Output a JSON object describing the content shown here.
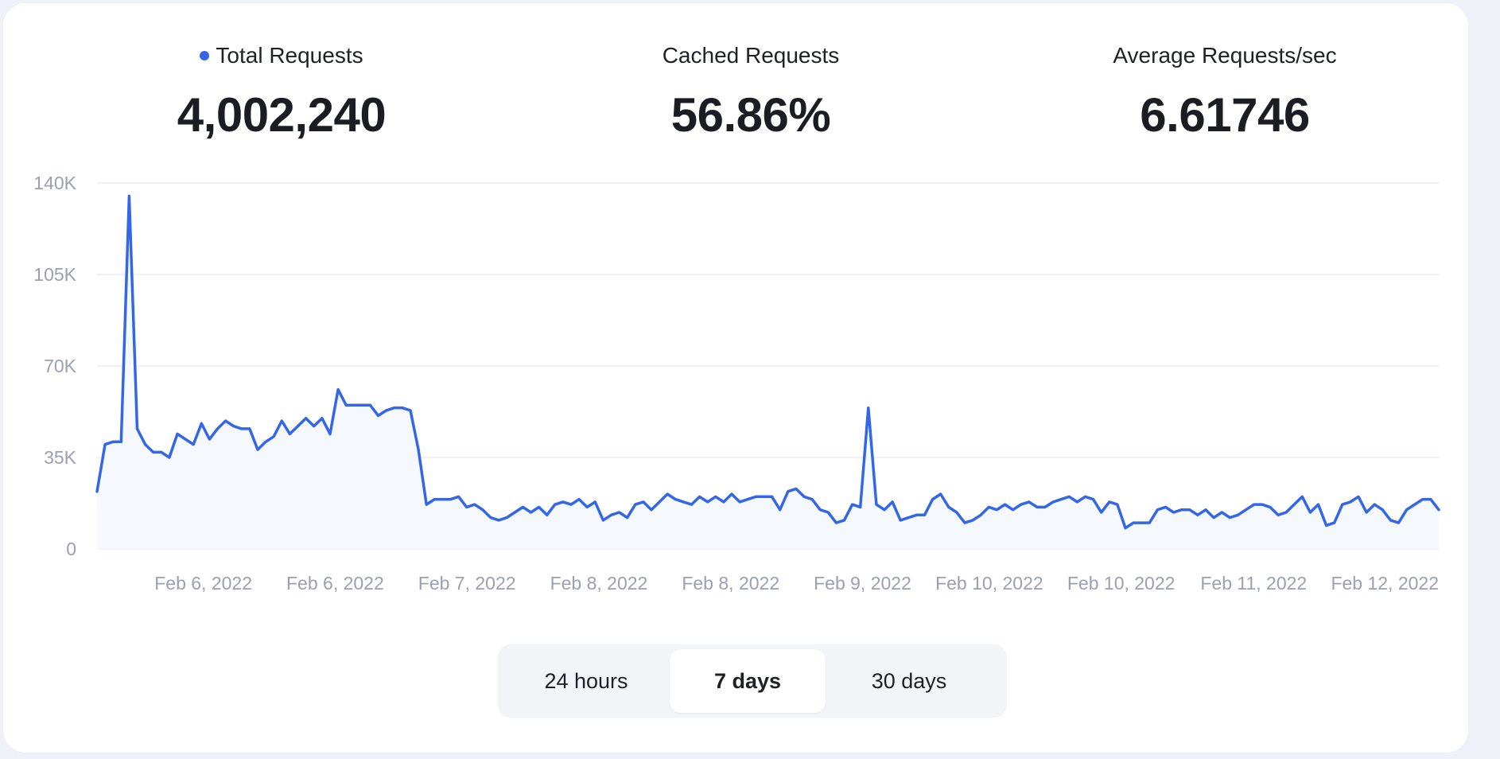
{
  "stats": [
    {
      "label": "Total Requests",
      "value": "4,002,240",
      "dot_color": "#3467e8"
    },
    {
      "label": "Cached Requests",
      "value": "56.86%"
    },
    {
      "label": "Average Requests/sec",
      "value": "6.61746"
    }
  ],
  "range_selector": {
    "options": [
      "24 hours",
      "7 days",
      "30 days"
    ],
    "selected": "7 days"
  },
  "colors": {
    "line": "#3467e8",
    "fill": "#f5f8fd",
    "grid": "#eef1f8"
  },
  "chart_data": {
    "type": "area",
    "title": "",
    "xlabel": "",
    "ylabel": "",
    "ylim": [
      0,
      140000
    ],
    "y_ticks": [
      0,
      35000,
      70000,
      105000,
      140000
    ],
    "y_tick_labels": [
      "0",
      "35K",
      "70K",
      "105K",
      "140K"
    ],
    "x_tick_labels": [
      "Feb 6, 2022",
      "Feb 6, 2022",
      "Feb 7, 2022",
      "Feb 8, 2022",
      "Feb 8, 2022",
      "Feb 9, 2022",
      "Feb 10, 2022",
      "Feb 10, 2022",
      "Feb 11, 2022",
      "Feb 12, 2022"
    ],
    "grid": true,
    "legend": "none",
    "series": [
      {
        "name": "Total Requests",
        "values": [
          22000,
          40000,
          41000,
          41000,
          135000,
          46000,
          40000,
          37000,
          37000,
          35000,
          44000,
          42000,
          40000,
          48000,
          42000,
          46000,
          49000,
          47000,
          46000,
          46000,
          38000,
          41000,
          43000,
          49000,
          44000,
          47000,
          50000,
          47000,
          50000,
          44000,
          61000,
          55000,
          55000,
          55000,
          55000,
          51000,
          53000,
          54000,
          54000,
          53000,
          38000,
          17000,
          19000,
          19000,
          19000,
          20000,
          16000,
          17000,
          15000,
          12000,
          11000,
          12000,
          14000,
          16000,
          14000,
          16000,
          13000,
          17000,
          18000,
          17000,
          19000,
          16000,
          18000,
          11000,
          13000,
          14000,
          12000,
          17000,
          18000,
          15000,
          18000,
          21000,
          19000,
          18000,
          17000,
          20000,
          18000,
          20000,
          18000,
          21000,
          18000,
          19000,
          20000,
          20000,
          20000,
          15000,
          22000,
          23000,
          20000,
          19000,
          15000,
          14000,
          10000,
          11000,
          17000,
          16000,
          54000,
          17000,
          15000,
          18000,
          11000,
          12000,
          13000,
          13000,
          19000,
          21000,
          16000,
          14000,
          10000,
          11000,
          13000,
          16000,
          15000,
          17000,
          15000,
          17000,
          18000,
          16000,
          16000,
          18000,
          19000,
          20000,
          18000,
          20000,
          19000,
          14000,
          18000,
          17000,
          8000,
          10000,
          10000,
          10000,
          15000,
          16000,
          14000,
          15000,
          15000,
          13000,
          15000,
          12000,
          14000,
          12000,
          13000,
          15000,
          17000,
          17000,
          16000,
          13000,
          14000,
          17000,
          20000,
          14000,
          17000,
          9000,
          10000,
          17000,
          18000,
          20000,
          14000,
          17000,
          15000,
          11000,
          10000,
          15000,
          17000,
          19000,
          19000,
          15000
        ]
      }
    ]
  }
}
